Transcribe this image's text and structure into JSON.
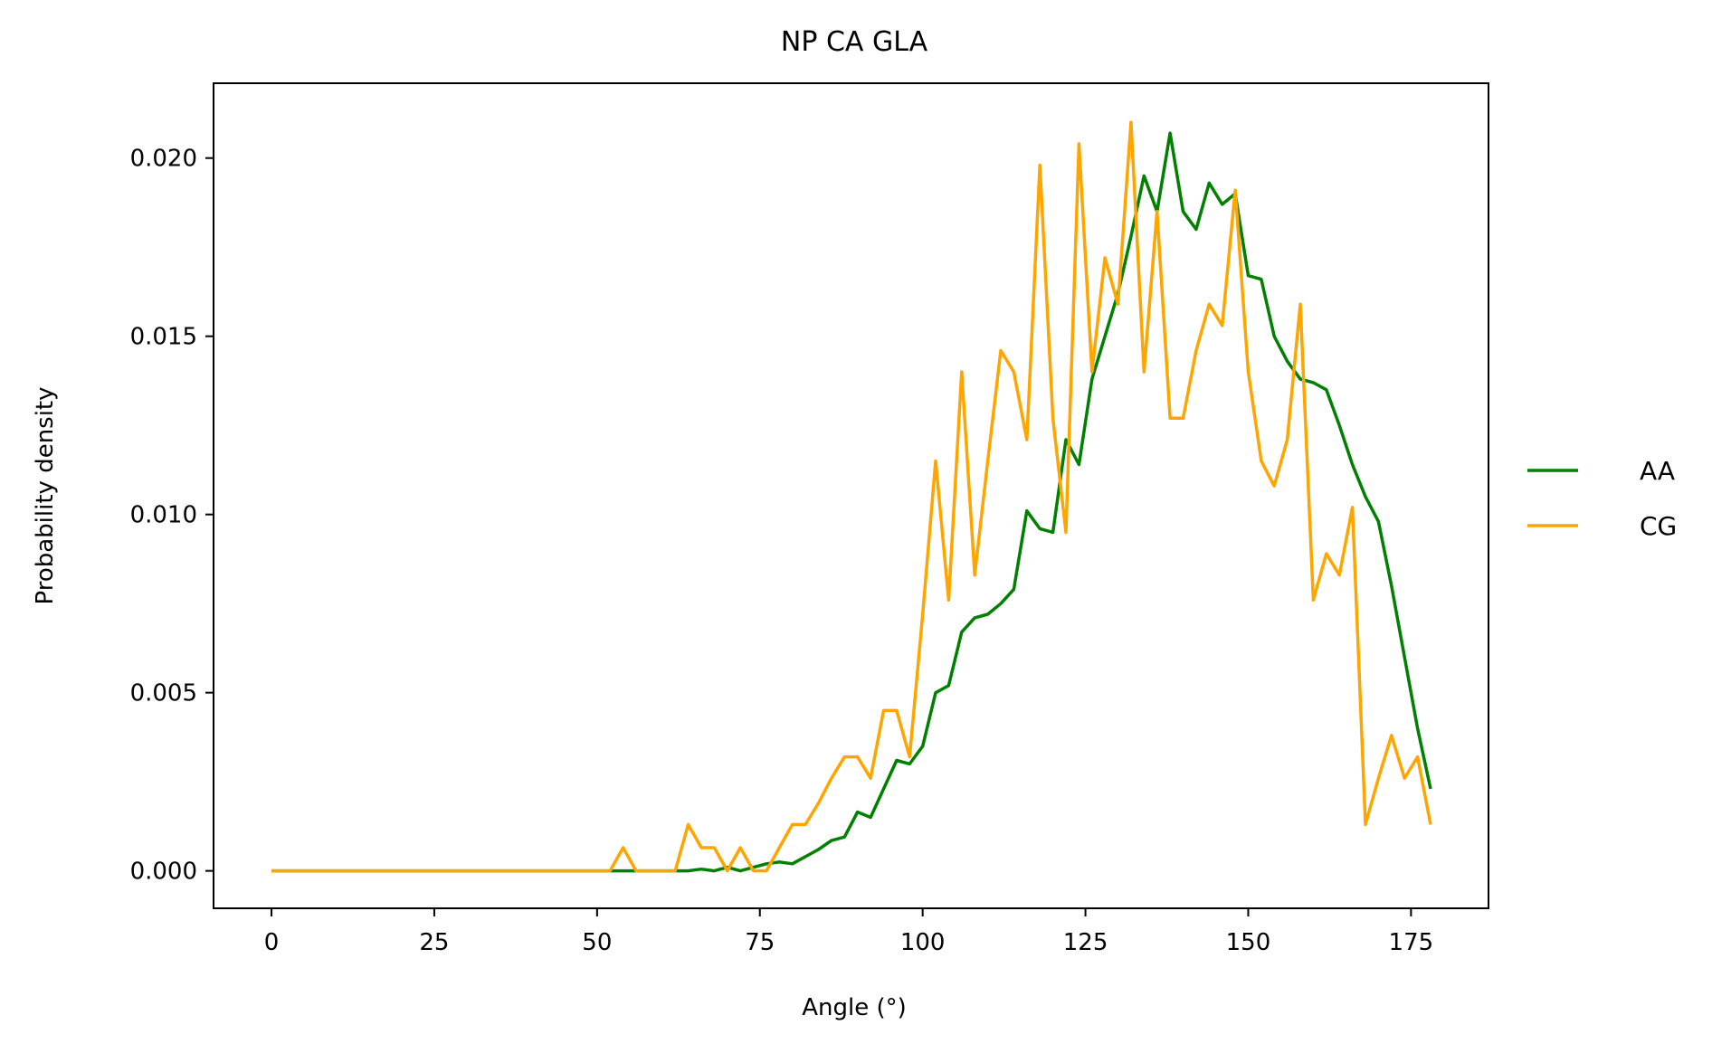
{
  "chart_data": {
    "type": "line",
    "title": "NP CA GLA",
    "xlabel": "Angle (°)",
    "ylabel": "Probability density",
    "xlim": [
      -8.9,
      186.9
    ],
    "ylim": [
      -0.00105,
      0.0221
    ],
    "xticks": [
      0,
      25,
      50,
      75,
      100,
      125,
      150,
      175
    ],
    "xtick_labels": [
      "0",
      "25",
      "50",
      "75",
      "100",
      "125",
      "150",
      "175"
    ],
    "yticks": [
      0.0,
      0.005,
      0.01,
      0.015,
      0.02
    ],
    "ytick_labels": [
      "0.000",
      "0.005",
      "0.010",
      "0.015",
      "0.020"
    ],
    "grid": false,
    "legend_position": "right-outside",
    "series": [
      {
        "name": "AA",
        "color": "#008000",
        "x": [
          0,
          2,
          4,
          6,
          8,
          10,
          12,
          14,
          16,
          18,
          20,
          22,
          24,
          26,
          28,
          30,
          32,
          34,
          36,
          38,
          40,
          42,
          44,
          46,
          48,
          50,
          52,
          54,
          56,
          58,
          60,
          62,
          64,
          66,
          68,
          70,
          72,
          74,
          76,
          78,
          80,
          82,
          84,
          86,
          88,
          90,
          92,
          94,
          96,
          98,
          100,
          102,
          104,
          106,
          108,
          110,
          112,
          114,
          116,
          118,
          120,
          122,
          124,
          126,
          128,
          130,
          132,
          134,
          136,
          138,
          140,
          142,
          144,
          146,
          148,
          150,
          152,
          154,
          156,
          158,
          160,
          162,
          164,
          166,
          168,
          170,
          172,
          174,
          176,
          178
        ],
        "y": [
          0,
          0,
          0,
          0,
          0,
          0,
          0,
          0,
          0,
          0,
          0,
          0,
          0,
          0,
          0,
          0,
          0,
          0,
          0,
          0,
          0,
          0,
          0,
          0,
          0,
          0,
          0,
          0,
          0,
          0,
          0,
          0,
          0,
          5e-05,
          0,
          0.0001,
          0,
          0.0001,
          0.0002,
          0.00025,
          0.0002,
          0.0004,
          0.0006,
          0.00085,
          0.00095,
          0.00165,
          0.0015,
          0.0023,
          0.0031,
          0.003,
          0.0035,
          0.005,
          0.0052,
          0.0067,
          0.0071,
          0.0072,
          0.0075,
          0.0079,
          0.0101,
          0.0096,
          0.0095,
          0.0121,
          0.0114,
          0.0138,
          0.015,
          0.0162,
          0.0178,
          0.0195,
          0.0185,
          0.0207,
          0.0185,
          0.018,
          0.0193,
          0.0187,
          0.019,
          0.0167,
          0.0166,
          0.015,
          0.0143,
          0.0138,
          0.0137,
          0.0135,
          0.0125,
          0.0114,
          0.0105,
          0.0098,
          0.008,
          0.006,
          0.004,
          0.0023
        ]
      },
      {
        "name": "CG",
        "color": "#ffa500",
        "x": [
          0,
          2,
          4,
          6,
          8,
          10,
          12,
          14,
          16,
          18,
          20,
          22,
          24,
          26,
          28,
          30,
          32,
          34,
          36,
          38,
          40,
          42,
          44,
          46,
          48,
          50,
          52,
          54,
          56,
          58,
          60,
          62,
          64,
          66,
          68,
          70,
          72,
          74,
          76,
          78,
          80,
          82,
          84,
          86,
          88,
          90,
          92,
          94,
          96,
          98,
          100,
          102,
          104,
          106,
          108,
          110,
          112,
          114,
          116,
          118,
          120,
          122,
          124,
          126,
          128,
          130,
          132,
          134,
          136,
          138,
          140,
          142,
          144,
          146,
          148,
          150,
          152,
          154,
          156,
          158,
          160,
          162,
          164,
          166,
          168,
          170,
          172,
          174,
          176,
          178
        ],
        "y": [
          0,
          0,
          0,
          0,
          0,
          0,
          0,
          0,
          0,
          0,
          0,
          0,
          0,
          0,
          0,
          0,
          0,
          0,
          0,
          0,
          0,
          0,
          0,
          0,
          0,
          0,
          0,
          0.00065,
          0,
          0,
          0,
          0,
          0.0013,
          0.00065,
          0.00065,
          0,
          0.00065,
          0,
          0,
          0.00065,
          0.0013,
          0.0013,
          0.0019,
          0.0026,
          0.0032,
          0.0032,
          0.0026,
          0.0045,
          0.0045,
          0.0032,
          0.0072,
          0.0115,
          0.0076,
          0.014,
          0.0083,
          0.0115,
          0.0146,
          0.014,
          0.0121,
          0.0198,
          0.0127,
          0.0095,
          0.0204,
          0.014,
          0.0172,
          0.0159,
          0.021,
          0.014,
          0.0185,
          0.0127,
          0.0127,
          0.0146,
          0.0159,
          0.0153,
          0.0191,
          0.014,
          0.0115,
          0.0108,
          0.0121,
          0.0159,
          0.0076,
          0.0089,
          0.0083,
          0.0102,
          0.0013,
          0.0026,
          0.0038,
          0.0026,
          0.0032,
          0.0013
        ]
      }
    ]
  }
}
